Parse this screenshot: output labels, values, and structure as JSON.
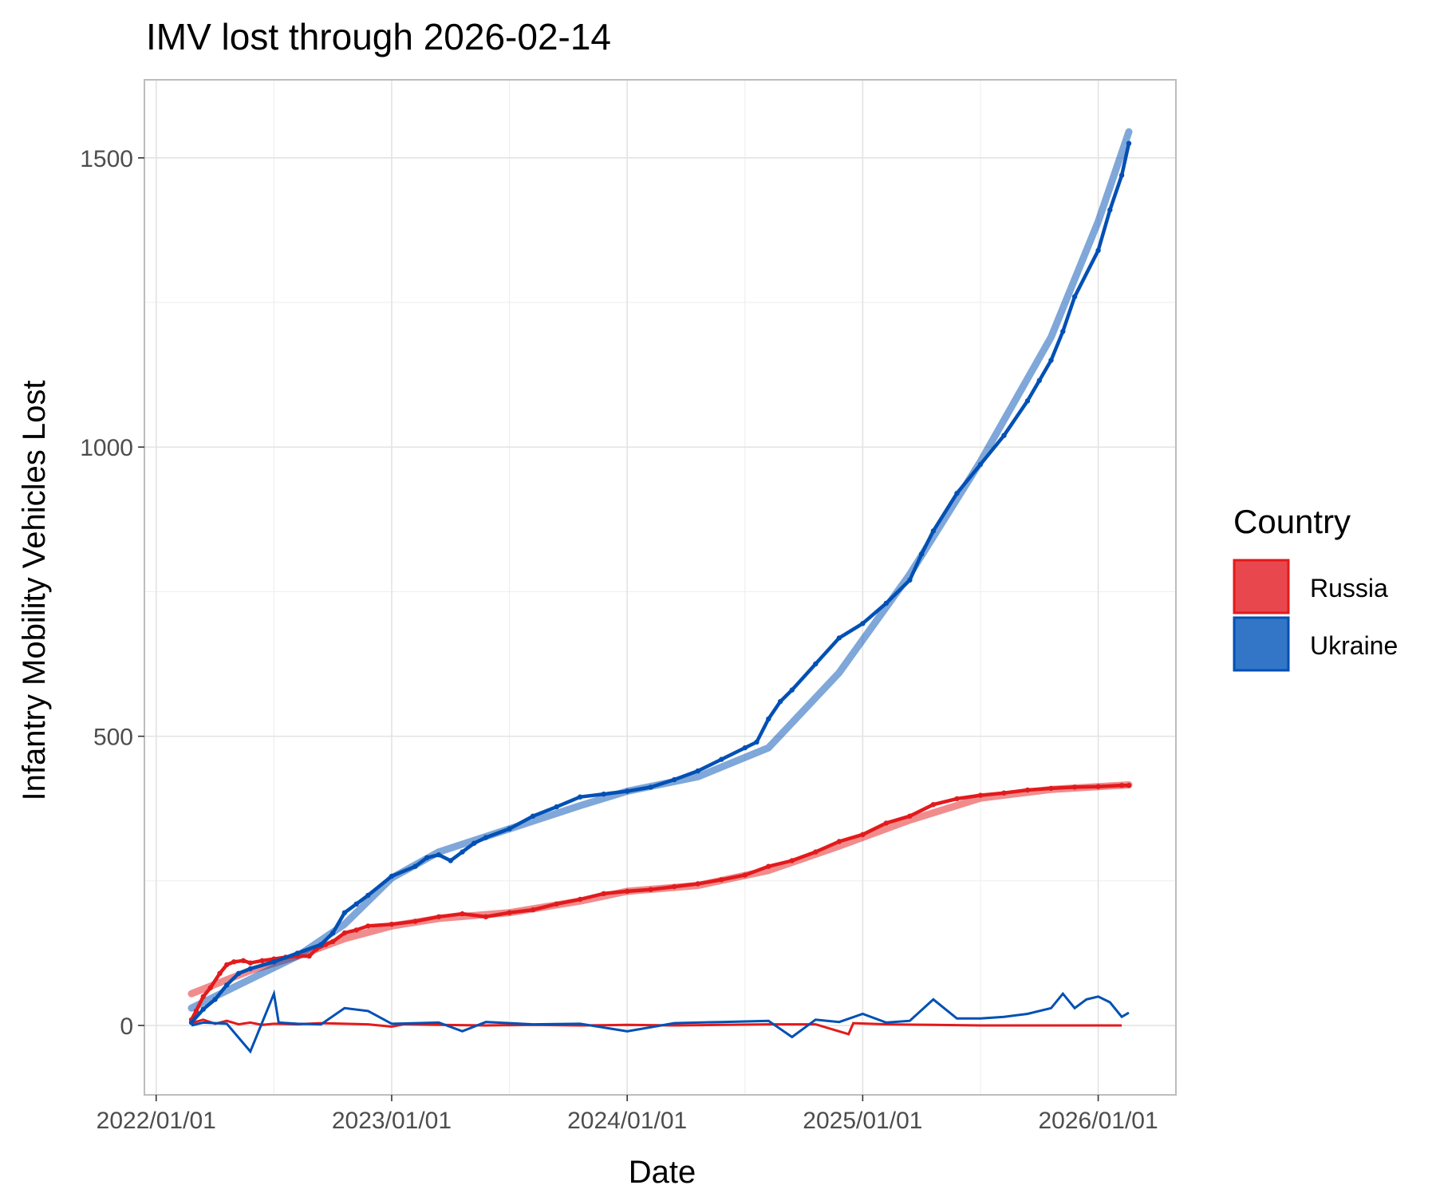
{
  "chart_data": {
    "type": "line",
    "title": "IMV lost through 2026-02-14",
    "xlabel": "Date",
    "ylabel": "Infantry Mobility Vehicles Lost",
    "x_tick_labels": [
      "2022/01/01",
      "2023/01/01",
      "2024/01/01",
      "2025/01/01",
      "2026/01/01"
    ],
    "x_ticks": [
      2022.0,
      2023.0,
      2024.0,
      2025.0,
      2026.0
    ],
    "y_ticks": [
      0,
      500,
      1000,
      1500
    ],
    "y_tick_labels": [
      "0",
      "500",
      "1000",
      "1500"
    ],
    "xlim": [
      2021.95,
      2026.33
    ],
    "ylim": [
      -120,
      1635
    ],
    "grid": true,
    "legend": {
      "title": "Country",
      "position": "right",
      "entries": [
        {
          "name": "Russia",
          "color": "#E31A1C"
        },
        {
          "name": "Ukraine",
          "color": "#0050B4"
        }
      ]
    },
    "series": [
      {
        "name": "Russia",
        "kind": "cumulative",
        "color": "#E31A1C",
        "x": [
          2022.15,
          2022.17,
          2022.2,
          2022.23,
          2022.27,
          2022.3,
          2022.33,
          2022.37,
          2022.4,
          2022.45,
          2022.5,
          2022.55,
          2022.6,
          2022.65,
          2022.68,
          2022.72,
          2022.75,
          2022.8,
          2022.85,
          2022.9,
          2023.0,
          2023.1,
          2023.2,
          2023.3,
          2023.4,
          2023.5,
          2023.6,
          2023.7,
          2023.8,
          2023.9,
          2024.0,
          2024.1,
          2024.2,
          2024.3,
          2024.4,
          2024.5,
          2024.6,
          2024.7,
          2024.8,
          2024.9,
          2025.0,
          2025.1,
          2025.2,
          2025.3,
          2025.4,
          2025.5,
          2025.6,
          2025.7,
          2025.8,
          2025.9,
          2026.0,
          2026.1,
          2026.13
        ],
        "y": [
          10,
          25,
          50,
          65,
          90,
          105,
          110,
          112,
          108,
          112,
          115,
          118,
          120,
          120,
          132,
          140,
          145,
          160,
          165,
          172,
          175,
          180,
          188,
          193,
          188,
          195,
          200,
          210,
          218,
          228,
          232,
          235,
          240,
          245,
          252,
          260,
          275,
          285,
          300,
          318,
          330,
          350,
          362,
          382,
          392,
          398,
          402,
          407,
          410,
          412,
          413,
          415,
          415
        ]
      },
      {
        "name": "Ukraine",
        "kind": "cumulative",
        "color": "#0050B4",
        "x": [
          2022.15,
          2022.2,
          2022.25,
          2022.3,
          2022.35,
          2022.4,
          2022.5,
          2022.6,
          2022.7,
          2022.75,
          2022.8,
          2022.85,
          2022.9,
          2023.0,
          2023.1,
          2023.15,
          2023.2,
          2023.25,
          2023.3,
          2023.35,
          2023.4,
          2023.5,
          2023.6,
          2023.7,
          2023.8,
          2023.9,
          2024.0,
          2024.1,
          2024.2,
          2024.3,
          2024.4,
          2024.5,
          2024.55,
          2024.6,
          2024.65,
          2024.7,
          2024.8,
          2024.9,
          2025.0,
          2025.1,
          2025.2,
          2025.25,
          2025.3,
          2025.4,
          2025.5,
          2025.6,
          2025.7,
          2025.75,
          2025.8,
          2025.85,
          2025.9,
          2026.0,
          2026.05,
          2026.1,
          2026.13
        ],
        "y": [
          5,
          28,
          45,
          70,
          90,
          98,
          110,
          125,
          140,
          160,
          195,
          210,
          225,
          258,
          275,
          290,
          295,
          285,
          300,
          315,
          325,
          340,
          362,
          378,
          395,
          400,
          405,
          412,
          425,
          440,
          460,
          480,
          490,
          530,
          560,
          580,
          625,
          670,
          695,
          730,
          770,
          815,
          855,
          920,
          970,
          1020,
          1080,
          1115,
          1150,
          1200,
          1260,
          1340,
          1410,
          1470,
          1525
        ]
      },
      {
        "name": "Russia",
        "kind": "daily",
        "color": "#E31A1C",
        "x": [
          2022.15,
          2022.2,
          2022.25,
          2022.3,
          2022.35,
          2022.4,
          2022.45,
          2022.5,
          2022.6,
          2022.7,
          2022.8,
          2022.9,
          2023.0,
          2023.05,
          2023.2,
          2023.4,
          2023.6,
          2023.8,
          2024.0,
          2024.2,
          2024.4,
          2024.6,
          2024.8,
          2024.94,
          2024.96,
          2025.1,
          2025.3,
          2025.5,
          2025.7,
          2025.9,
          2026.1
        ],
        "y": [
          4,
          10,
          3,
          8,
          2,
          5,
          1,
          3,
          2,
          4,
          3,
          2,
          -2,
          2,
          1,
          0,
          1,
          0,
          1,
          0,
          1,
          2,
          2,
          -15,
          4,
          2,
          1,
          0,
          0,
          0,
          0
        ]
      },
      {
        "name": "Ukraine",
        "kind": "daily",
        "color": "#0050B4",
        "x": [
          2022.15,
          2022.2,
          2022.3,
          2022.4,
          2022.5,
          2022.52,
          2022.6,
          2022.7,
          2022.8,
          2022.9,
          2023.0,
          2023.2,
          2023.3,
          2023.4,
          2023.5,
          2023.6,
          2023.8,
          2024.0,
          2024.2,
          2024.4,
          2024.6,
          2024.7,
          2024.8,
          2024.9,
          2025.0,
          2025.1,
          2025.2,
          2025.3,
          2025.4,
          2025.5,
          2025.6,
          2025.7,
          2025.8,
          2025.85,
          2025.9,
          2025.95,
          2026.0,
          2026.05,
          2026.1,
          2026.13
        ],
        "y": [
          0,
          5,
          3,
          -45,
          55,
          5,
          3,
          2,
          30,
          25,
          3,
          5,
          -10,
          6,
          4,
          2,
          3,
          -10,
          4,
          6,
          8,
          -20,
          10,
          6,
          20,
          5,
          8,
          45,
          12,
          12,
          15,
          20,
          30,
          55,
          30,
          45,
          50,
          40,
          15,
          22
        ]
      },
      {
        "name": "Russia",
        "kind": "trend",
        "color": "#E31A1C",
        "x": [
          2022.15,
          2022.4,
          2022.6,
          2022.8,
          2023.0,
          2023.2,
          2023.5,
          2023.8,
          2024.0,
          2024.3,
          2024.6,
          2024.9,
          2025.2,
          2025.5,
          2025.8,
          2026.13
        ],
        "y": [
          55,
          95,
          120,
          150,
          172,
          185,
          195,
          215,
          232,
          242,
          268,
          310,
          355,
          393,
          408,
          416
        ]
      },
      {
        "name": "Ukraine",
        "kind": "trend",
        "color": "#0050B4",
        "x": [
          2022.15,
          2022.4,
          2022.6,
          2022.8,
          2023.0,
          2023.2,
          2023.5,
          2023.8,
          2024.0,
          2024.3,
          2024.6,
          2024.9,
          2025.2,
          2025.5,
          2025.8,
          2026.0,
          2026.13
        ],
        "y": [
          30,
          80,
          120,
          175,
          255,
          300,
          340,
          380,
          405,
          430,
          480,
          610,
          780,
          975,
          1190,
          1390,
          1545
        ]
      }
    ]
  }
}
